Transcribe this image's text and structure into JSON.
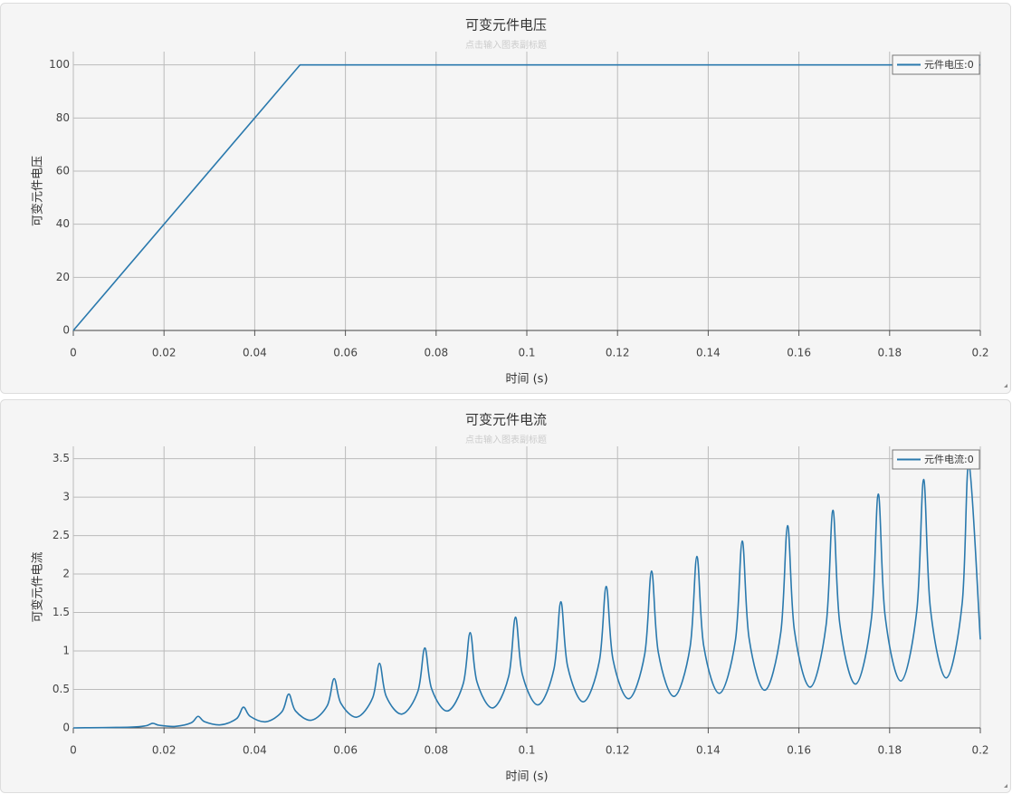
{
  "chart_data": [
    {
      "type": "line",
      "title": "可变元件电压",
      "subtitle": "点击输入图表副标题",
      "x_label": "时间 (s)",
      "y_label": "可变元件电压",
      "x": [
        0,
        0.05,
        0.2
      ],
      "series": [
        {
          "name": "元件电压:0",
          "color": "#2a79ad",
          "values": [
            0,
            100,
            100
          ]
        }
      ],
      "xlim": [
        0,
        0.2
      ],
      "ylim": [
        0,
        105
      ],
      "xticks": [
        0,
        0.02,
        0.04,
        0.06,
        0.08,
        0.1,
        0.12,
        0.14,
        0.16,
        0.18,
        0.2
      ],
      "yticks": [
        0,
        20,
        40,
        60,
        80,
        100
      ],
      "grid": true,
      "legend": "upper right",
      "smooth": false
    },
    {
      "type": "line",
      "title": "可变元件电流",
      "subtitle": "点击输入图表副标题",
      "x_label": "时间 (s)",
      "y_label": "可变元件电流",
      "x": [
        0,
        0.0125,
        0.016,
        0.0175,
        0.019,
        0.0225,
        0.026,
        0.0275,
        0.029,
        0.0325,
        0.036,
        0.0375,
        0.039,
        0.0425,
        0.046,
        0.0475,
        0.049,
        0.0525,
        0.056,
        0.0575,
        0.059,
        0.0625,
        0.066,
        0.0675,
        0.069,
        0.0725,
        0.076,
        0.0775,
        0.079,
        0.0825,
        0.086,
        0.0875,
        0.089,
        0.0925,
        0.096,
        0.0975,
        0.099,
        0.1025,
        0.106,
        0.1075,
        0.109,
        0.1125,
        0.116,
        0.1175,
        0.119,
        0.1225,
        0.126,
        0.1275,
        0.129,
        0.1325,
        0.136,
        0.1375,
        0.139,
        0.1425,
        0.146,
        0.1475,
        0.149,
        0.1525,
        0.156,
        0.1575,
        0.159,
        0.1625,
        0.166,
        0.1675,
        0.169,
        0.1725,
        0.176,
        0.1775,
        0.179,
        0.1825,
        0.186,
        0.1875,
        0.189,
        0.1925,
        0.196,
        0.1975,
        0.2
      ],
      "series": [
        {
          "name": "元件电流:0",
          "color": "#2a79ad",
          "values": [
            0,
            0.01,
            0.028,
            0.06,
            0.034,
            0.02,
            0.066,
            0.15,
            0.079,
            0.04,
            0.12,
            0.27,
            0.15,
            0.08,
            0.21,
            0.44,
            0.22,
            0.1,
            0.29,
            0.64,
            0.32,
            0.14,
            0.39,
            0.84,
            0.41,
            0.18,
            0.48,
            1.04,
            0.51,
            0.22,
            0.58,
            1.24,
            0.6,
            0.26,
            0.67,
            1.44,
            0.7,
            0.3,
            0.77,
            1.64,
            0.8,
            0.34,
            0.87,
            1.84,
            0.89,
            0.38,
            0.96,
            2.04,
            0.98,
            0.41,
            1.05,
            2.23,
            1.07,
            0.45,
            1.14,
            2.43,
            1.17,
            0.49,
            1.24,
            2.63,
            1.27,
            0.53,
            1.34,
            2.83,
            1.36,
            0.57,
            1.43,
            3.04,
            1.46,
            0.61,
            1.53,
            3.23,
            1.55,
            0.65,
            1.62,
            3.43,
            1.15
          ]
        }
      ],
      "xlim": [
        0,
        0.2
      ],
      "ylim": [
        0,
        3.66
      ],
      "xticks": [
        0,
        0.02,
        0.04,
        0.06,
        0.08,
        0.1,
        0.12,
        0.14,
        0.16,
        0.18,
        0.2
      ],
      "yticks": [
        0,
        0.5,
        1,
        1.5,
        2,
        2.5,
        3,
        3.5
      ],
      "grid": true,
      "legend": "upper right",
      "smooth": true
    }
  ]
}
